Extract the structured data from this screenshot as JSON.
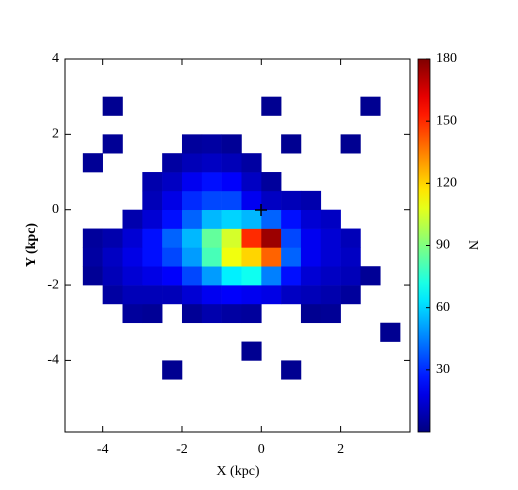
{
  "chart_data": {
    "type": "heatmap",
    "xlabel": "X (kpc)",
    "ylabel": "Y (kpc)",
    "colorbar_label": "N",
    "xlim": [
      -4.95,
      3.75
    ],
    "ylim": [
      -5.9,
      4.0
    ],
    "xticks": [
      -4,
      -2,
      0,
      2
    ],
    "yticks": [
      -4,
      -2,
      0,
      2,
      4
    ],
    "zlim": [
      0,
      180
    ],
    "zticks": [
      30,
      60,
      90,
      120,
      150,
      180
    ],
    "colormap": "jet",
    "xbins": [
      -4.5,
      -4.0,
      -3.5,
      -3.0,
      -2.5,
      -2.0,
      -1.5,
      -1.0,
      -0.5,
      0.0,
      0.5,
      1.0,
      1.5,
      2.0,
      2.5,
      3.0,
      3.5
    ],
    "ybins": [
      -4.5,
      -4.0,
      -3.5,
      -3.0,
      -2.5,
      -2.0,
      -1.5,
      -1.0,
      -0.5,
      0.0,
      0.5,
      1.0,
      1.5,
      2.0,
      2.5,
      3.0
    ],
    "z": [
      [
        null,
        null,
        null,
        null,
        3,
        null,
        null,
        null,
        null,
        null,
        3,
        null,
        null,
        null,
        null,
        null
      ],
      [
        null,
        null,
        null,
        null,
        null,
        null,
        null,
        null,
        3,
        null,
        null,
        null,
        null,
        null,
        null,
        null
      ],
      [
        null,
        null,
        null,
        null,
        null,
        null,
        null,
        null,
        null,
        null,
        null,
        null,
        null,
        null,
        null,
        3
      ],
      [
        null,
        null,
        5,
        4,
        null,
        4,
        8,
        6,
        5,
        null,
        null,
        3,
        4,
        null,
        null,
        null
      ],
      [
        null,
        6,
        10,
        10,
        10,
        15,
        20,
        22,
        20,
        18,
        12,
        10,
        8,
        5,
        null,
        null
      ],
      [
        4,
        10,
        15,
        18,
        22,
        35,
        50,
        65,
        70,
        45,
        25,
        15,
        12,
        10,
        4,
        null
      ],
      [
        6,
        12,
        18,
        25,
        35,
        50,
        80,
        110,
        120,
        140,
        40,
        20,
        15,
        12,
        null,
        null
      ],
      [
        5,
        8,
        15,
        25,
        40,
        55,
        85,
        105,
        150,
        175,
        35,
        20,
        15,
        10,
        null,
        null
      ],
      [
        null,
        null,
        8,
        15,
        25,
        40,
        55,
        60,
        55,
        40,
        25,
        15,
        12,
        null,
        null,
        null
      ],
      [
        null,
        null,
        null,
        10,
        18,
        30,
        35,
        35,
        20,
        12,
        10,
        8,
        null,
        null,
        null,
        null
      ],
      [
        null,
        null,
        null,
        8,
        12,
        20,
        25,
        22,
        12,
        5,
        null,
        null,
        null,
        null,
        null,
        null
      ],
      [
        4,
        null,
        null,
        null,
        6,
        10,
        12,
        10,
        6,
        null,
        null,
        null,
        null,
        null,
        null,
        null
      ],
      [
        null,
        4,
        null,
        null,
        null,
        5,
        6,
        4,
        null,
        null,
        3,
        null,
        null,
        3,
        null,
        null
      ],
      [
        null,
        null,
        null,
        null,
        null,
        null,
        null,
        null,
        null,
        null,
        null,
        null,
        null,
        null,
        null,
        null
      ],
      [
        null,
        3,
        null,
        null,
        null,
        null,
        null,
        null,
        null,
        3,
        null,
        null,
        null,
        null,
        3,
        null
      ]
    ]
  }
}
